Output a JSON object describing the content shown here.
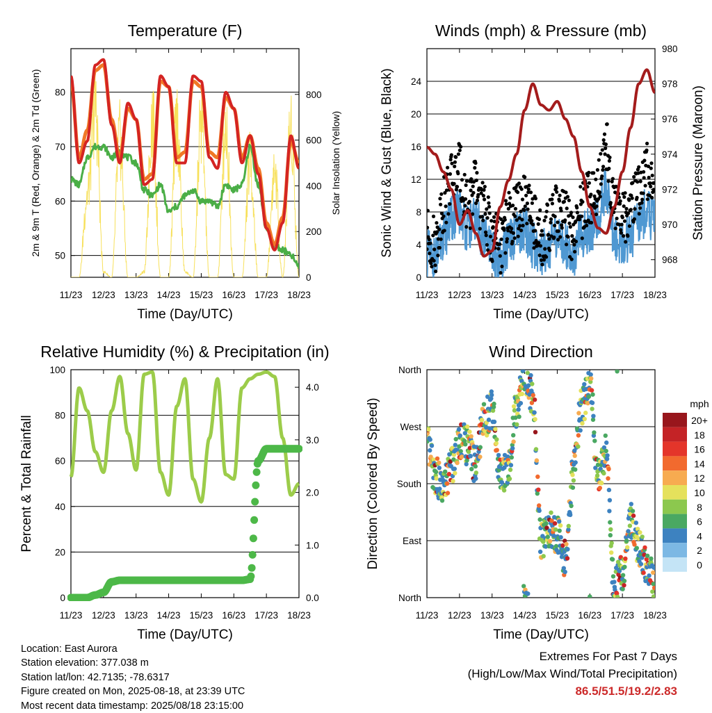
{
  "colors": {
    "temp_2m": "#d42422",
    "temp_9m": "#f07826",
    "dewpoint": "#4aae46",
    "insolation": "#f7e05a",
    "wind_speed": "#4f98d2",
    "wind_gust": "#000000",
    "pressure": "#a41c1c",
    "humidity": "#9ccc4a",
    "precip": "#4db848",
    "extremes_text": "#cc2a2a"
  },
  "x_ticks": [
    "11/23",
    "12/23",
    "13/23",
    "14/23",
    "15/23",
    "16/23",
    "17/23",
    "18/23"
  ],
  "x_label": "Time (Day/UTC)",
  "chart_data": [
    {
      "type": "line",
      "title": "Temperature (F)",
      "xlabel": "Time (Day/UTC)",
      "ylabel": "2m & 9m T (Red, Orange) & 2m Td (Green)",
      "y2label": "Solar Insolation (Yellow)",
      "ylim": [
        46,
        88
      ],
      "y2lim": [
        0,
        1000
      ],
      "yticks": [
        50,
        60,
        70,
        80
      ],
      "y2ticks": [
        0,
        200,
        400,
        600,
        800
      ],
      "x": [
        0,
        0.25,
        0.5,
        0.75,
        1,
        1.25,
        1.5,
        1.75,
        2,
        2.25,
        2.5,
        2.75,
        3,
        3.25,
        3.5,
        3.75,
        4,
        4.25,
        4.5,
        4.75,
        5,
        5.25,
        5.5,
        5.75,
        6,
        6.25,
        6.5,
        6.75,
        7
      ],
      "series": [
        {
          "name": "2m T",
          "values": [
            83,
            67,
            71,
            85,
            86,
            74,
            67,
            78,
            75,
            63,
            64,
            83,
            81,
            67,
            67,
            83,
            82,
            68,
            66,
            80,
            77,
            67,
            72,
            65,
            55,
            51,
            56,
            72,
            66
          ]
        },
        {
          "name": "9m T",
          "values": [
            82,
            68,
            73,
            84,
            85,
            75,
            68,
            77,
            75,
            64,
            65,
            82,
            81,
            68,
            69,
            82,
            81,
            69,
            68,
            79,
            77,
            68,
            72,
            66,
            56,
            52,
            57,
            71,
            67
          ]
        },
        {
          "name": "2m Td",
          "values": [
            64,
            63,
            68,
            70,
            70,
            68,
            69,
            68,
            67,
            62,
            61,
            63,
            58,
            59,
            61,
            62,
            60,
            60,
            59,
            63,
            62,
            63,
            70,
            63,
            55,
            52,
            51,
            50,
            48
          ]
        },
        {
          "name": "Solar Insolation",
          "axis": "right",
          "values": [
            0,
            0,
            460,
            960,
            30,
            0,
            780,
            0,
            0,
            30,
            900,
            0,
            0,
            870,
            30,
            0,
            880,
            0,
            0,
            860,
            0,
            0,
            650,
            0,
            0,
            600,
            0,
            860,
            0
          ]
        }
      ]
    },
    {
      "type": "line",
      "title": "Winds (mph) & Pressure (mb)",
      "xlabel": "Time (Day/UTC)",
      "ylabel": "Sonic Wind & Gust (Blue, Black)",
      "y2label": "Station Pressure (Maroon)",
      "ylim": [
        0,
        28
      ],
      "y2lim": [
        967,
        980
      ],
      "yticks": [
        0,
        4,
        8,
        12,
        16,
        20,
        24
      ],
      "y2ticks": [
        968,
        970,
        972,
        974,
        976,
        978,
        980
      ],
      "x": [
        0,
        0.25,
        0.5,
        0.75,
        1,
        1.25,
        1.5,
        1.75,
        2,
        2.25,
        2.5,
        2.75,
        3,
        3.25,
        3.5,
        3.75,
        4,
        4.25,
        4.5,
        4.75,
        5,
        5.25,
        5.5,
        5.75,
        6,
        6.25,
        6.5,
        6.75,
        7
      ],
      "series": [
        {
          "name": "Wind",
          "values": [
            3,
            2,
            5,
            7,
            8,
            6,
            7,
            5,
            3,
            2,
            4,
            5,
            6,
            4,
            3,
            4,
            5,
            4,
            3,
            5,
            6,
            7,
            11,
            5,
            4,
            5,
            7,
            8,
            7
          ]
        },
        {
          "name": "Gust",
          "values": [
            5,
            4,
            9,
            12,
            13,
            9,
            11,
            8,
            5,
            4,
            7,
            8,
            9,
            7,
            5,
            6,
            8,
            7,
            5,
            8,
            10,
            11,
            16,
            9,
            7,
            8,
            11,
            13,
            12
          ]
        },
        {
          "name": "Pressure",
          "axis": "right",
          "values": [
            974.4,
            974.0,
            973.0,
            972.0,
            970.0,
            970.8,
            969.5,
            968.2,
            968.5,
            971.0,
            972.5,
            974.0,
            976.5,
            978.0,
            976.8,
            976.5,
            977.0,
            976.0,
            975.0,
            973.0,
            971.0,
            969.8,
            969.5,
            971.0,
            973.0,
            975.5,
            978.0,
            978.8,
            977.5
          ]
        }
      ]
    },
    {
      "type": "line",
      "title": "Relative Humidity (%) & Precipitation (in)",
      "xlabel": "Time (Day/UTC)",
      "ylabel": "Percent & Total Rainfall",
      "ylim": [
        0,
        100
      ],
      "y2lim": [
        0,
        4.333
      ],
      "yticks": [
        0,
        20,
        40,
        60,
        80,
        100
      ],
      "y2ticks": [
        "0.0",
        "1.0",
        "2.0",
        "3.0",
        "4.0"
      ],
      "x": [
        0,
        0.25,
        0.5,
        0.75,
        1,
        1.25,
        1.5,
        1.75,
        2,
        2.25,
        2.5,
        2.75,
        3,
        3.25,
        3.5,
        3.75,
        4,
        4.25,
        4.5,
        4.75,
        5,
        5.25,
        5.5,
        5.75,
        6,
        6.25,
        6.5,
        6.75,
        7
      ],
      "series": [
        {
          "name": "Relative Humidity",
          "values": [
            53,
            92,
            82,
            64,
            55,
            82,
            97,
            72,
            56,
            98,
            99,
            55,
            45,
            84,
            96,
            52,
            42,
            70,
            96,
            54,
            52,
            92,
            96,
            98,
            99,
            97,
            70,
            45,
            50
          ]
        },
        {
          "name": "Total Precipitation",
          "axis": "right",
          "values": [
            0,
            0,
            0,
            0.05,
            0.1,
            0.3,
            0.33,
            0.33,
            0.33,
            0.33,
            0.33,
            0.33,
            0.33,
            0.33,
            0.33,
            0.33,
            0.33,
            0.33,
            0.33,
            0.33,
            0.33,
            0.33,
            0.35,
            2.6,
            2.83,
            2.83,
            2.83,
            2.83,
            2.83
          ]
        }
      ]
    },
    {
      "type": "scatter",
      "title": "Wind Direction",
      "xlabel": "Time (Day/UTC)",
      "ylabel": "Direction (Colored By Speed)",
      "ytick_labels": [
        "North",
        "East",
        "South",
        "West",
        "North"
      ],
      "ylim": [
        0,
        360
      ],
      "colorbar": {
        "title": "mph",
        "labels": [
          "20+",
          "18",
          "16",
          "14",
          "12",
          "10",
          "8",
          "6",
          "4",
          "2",
          "0"
        ],
        "colors": [
          "#98161c",
          "#c42326",
          "#e4352a",
          "#f26a2e",
          "#f7ab50",
          "#e5e15c",
          "#8cc84e",
          "#4aa862",
          "#3d82c0",
          "#7cb8e4",
          "#c4e4f6"
        ]
      },
      "x": [
        0,
        0.25,
        0.5,
        0.75,
        1,
        1.25,
        1.5,
        1.75,
        2,
        2.25,
        2.5,
        2.75,
        3,
        3.25,
        3.5,
        3.75,
        4,
        4.25,
        4.5,
        4.75,
        5,
        5.25,
        5.5,
        5.75,
        6,
        6.25,
        6.5,
        6.75,
        7
      ],
      "series": [
        {
          "name": "Direction",
          "values": [
            240,
            195,
            170,
            210,
            250,
            240,
            210,
            280,
            300,
            190,
            200,
            300,
            355,
            320,
            90,
            110,
            100,
            60,
            200,
            300,
            340,
            190,
            230,
            20,
            40,
            120,
            80,
            50,
            20
          ]
        }
      ]
    }
  ],
  "info": {
    "location": "Location: East Aurora",
    "elevation": "Station elevation: 377.038 m",
    "latlon": "Station lat/lon: 42.7135; -78.6317",
    "created": "Figure created on Mon, 2025-08-18, at 23:39 UTC",
    "recent": "Most recent data timestamp: 2025/08/18 23:15:00"
  },
  "extremes": {
    "line1": "Extremes For Past 7 Days",
    "line2": "(High/Low/Max Wind/Total Precipitation)",
    "values": "86.5/51.5/19.2/2.83"
  }
}
